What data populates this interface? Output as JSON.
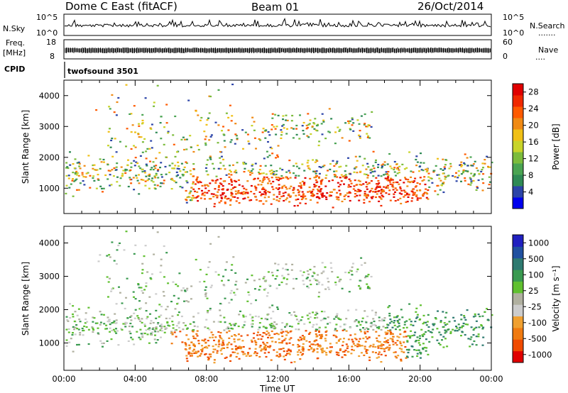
{
  "header": {
    "title": "Dome C East (fitACF)",
    "beam": "Beam 01",
    "date": "26/Oct/2014"
  },
  "strips": {
    "nsky_label": "N.Sky",
    "nsky_ticks": [
      "10^5",
      "10^0"
    ],
    "nsearch_label": "N.Search",
    "nsearch_dots": ".......",
    "freq_label": "Freq.",
    "freq_unit": "[MHz]",
    "freq_ticks": [
      "18",
      "8"
    ],
    "nave_label": "Nave",
    "nave_dots": "....",
    "nave_ticks": [
      "60",
      "0"
    ],
    "cpid_label": "CPID",
    "cpid_value": "twofsound 3501"
  },
  "colors": {
    "power_scale": [
      "#0000ee",
      "#2c44a8",
      "#2f8a55",
      "#4aa452",
      "#7cbc3c",
      "#c8d42a",
      "#f0c016",
      "#f08a14",
      "#ff5a00",
      "#f02800",
      "#e00000"
    ],
    "velocity_scale": [
      "#e00000",
      "#f04a00",
      "#f07a10",
      "#f0a030",
      "#cccccc",
      "#b0b0a0",
      "#60c030",
      "#3a9a50",
      "#2e7a70",
      "#2050a0",
      "#2020c0"
    ]
  },
  "chart_data": [
    {
      "type": "heatmap",
      "name": "power-panel",
      "ylabel": "Slant Range [km]",
      "xlabel": "Time UT",
      "x_ticks": [
        "00:00",
        "04:00",
        "08:00",
        "12:00",
        "16:00",
        "20:00",
        "00:00"
      ],
      "y_ticks": [
        1000,
        2000,
        3000,
        4000
      ],
      "ylim": [
        180,
        4500
      ],
      "x_range_hours": [
        0,
        24
      ],
      "colorbar": {
        "label": "Power [dB]",
        "ticks": [
          4,
          8,
          12,
          16,
          20,
          24,
          28
        ],
        "range": [
          0,
          30
        ]
      }
    },
    {
      "type": "heatmap",
      "name": "velocity-panel",
      "ylabel": "Slant Range [km]",
      "xlabel": "Time UT",
      "x_ticks": [
        "00:00",
        "04:00",
        "08:00",
        "12:00",
        "16:00",
        "20:00",
        "00:00"
      ],
      "y_ticks": [
        1000,
        2000,
        3000,
        4000
      ],
      "ylim": [
        180,
        4500
      ],
      "x_range_hours": [
        0,
        24
      ],
      "colorbar": {
        "label": "Velocity [m s⁻¹]",
        "ticks": [
          "1000",
          "500",
          "100",
          "25",
          "-25",
          "-100",
          "-500",
          "-1000"
        ]
      }
    }
  ],
  "axis": {
    "xlabel": "Time UT"
  }
}
